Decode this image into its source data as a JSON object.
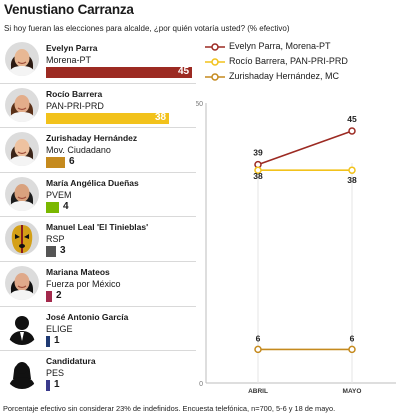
{
  "title": "Venustiano Carranza",
  "subtitle": "Si hoy fueran las elecciones para alcalde, ¿por quién votaría usted? (% efectivo)",
  "footnote": "Porcentaje efectivo sin considerar 23% de indefinidos. Encuesta telefónica, n=700, 5-6 y 18 de mayo.",
  "colors": {
    "parra": "#9c2a22",
    "barrera": "#f2c21b",
    "hernandez": "#c58a1e",
    "duenas": "#7ab800",
    "leal": "#555555",
    "mateos": "#a3294c",
    "garcia": "#1f3a73",
    "cand": "#3a3a8c"
  },
  "candidates": [
    {
      "name": "Evelyn Parra",
      "party": "Morena-PT",
      "value": "45",
      "color": "#9c2a22",
      "icon": "woman-portrait-icon"
    },
    {
      "name": "Rocío Barrera",
      "party": "PAN-PRI-PRD",
      "value": "38",
      "color": "#f2c21b",
      "icon": "woman-portrait-icon"
    },
    {
      "name": "Zurishaday Hernández",
      "party": "Mov. Ciudadano",
      "value": "6",
      "color": "#c58a1e",
      "icon": "woman-portrait-icon"
    },
    {
      "name": "María Angélica Dueñas",
      "party": "PVEM",
      "value": "4",
      "color": "#7ab800",
      "icon": "woman-portrait-icon"
    },
    {
      "name": "Manuel Leal 'El Tinieblas'",
      "party": "RSP",
      "value": "3",
      "color": "#555555",
      "icon": "masked-wrestler-icon"
    },
    {
      "name": "Mariana Mateos",
      "party": "Fuerza por México",
      "value": "2",
      "color": "#a3294c",
      "icon": "woman-portrait-icon"
    },
    {
      "name": "José Antonio García",
      "party": "ELIGE",
      "value": "1",
      "color": "#1f3a73",
      "icon": "man-silhouette-icon"
    },
    {
      "name": "Candidatura",
      "party": "PES",
      "value": "1",
      "color": "#3a3a8c",
      "icon": "woman-silhouette-icon"
    }
  ],
  "chart_data": [
    {
      "type": "bar",
      "orientation": "horizontal",
      "categories": [
        "Evelyn Parra",
        "Rocío Barrera",
        "Zurishaday Hernández",
        "María Angélica Dueñas",
        "Manuel Leal 'El Tinieblas'",
        "Mariana Mateos",
        "José Antonio García",
        "Candidatura"
      ],
      "values": [
        45,
        38,
        6,
        4,
        3,
        2,
        1,
        1
      ],
      "title": "Venustiano Carranza",
      "subtitle": "Si hoy fueran las elecciones para alcalde, ¿por quién votaría usted? (% efectivo)",
      "xlim": [
        0,
        45
      ]
    },
    {
      "type": "line",
      "categories": [
        "ABRIL",
        "MAYO"
      ],
      "series": [
        {
          "name": "Evelyn Parra, Morena-PT",
          "values": [
            39,
            45
          ],
          "color": "#9c2a22"
        },
        {
          "name": "Rocío Barrera, PAN-PRI-PRD",
          "values": [
            38,
            38
          ],
          "color": "#f2c21b"
        },
        {
          "name": "Zurishaday Hernández, MC",
          "values": [
            6,
            6
          ],
          "color": "#c58a1e"
        }
      ],
      "ylim": [
        0,
        50
      ],
      "yticks": [
        "0",
        "50"
      ],
      "legend": "top"
    }
  ]
}
